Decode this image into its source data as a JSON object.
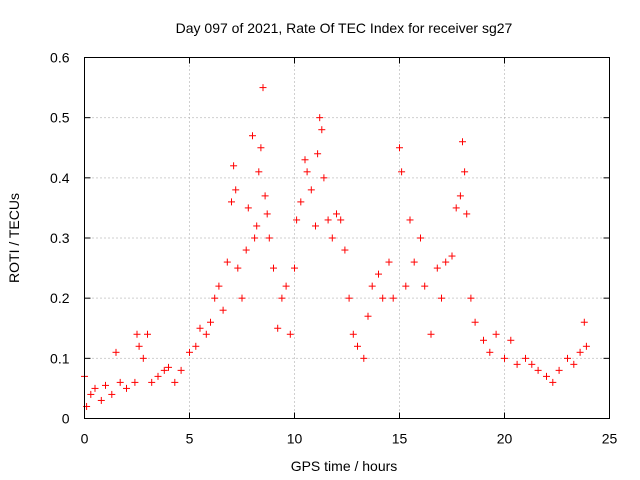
{
  "chart_data": {
    "type": "scatter",
    "title": "Day 097 of 2021, Rate Of TEC Index for receiver sg27",
    "xlabel": "GPS time / hours",
    "ylabel": "ROTI / TECUs",
    "xlim": [
      0,
      25
    ],
    "ylim": [
      0,
      0.6
    ],
    "xticks": [
      "0",
      "5",
      "10",
      "15",
      "20",
      "25"
    ],
    "yticks": [
      "0",
      "0.1",
      "0.2",
      "0.3",
      "0.4",
      "0.5",
      "0.6"
    ],
    "grid": true,
    "marker": "plus",
    "color": "#ff0000",
    "series": [
      {
        "name": "",
        "points": [
          [
            0.0,
            0.07
          ],
          [
            0.1,
            0.02
          ],
          [
            0.3,
            0.04
          ],
          [
            0.5,
            0.05
          ],
          [
            0.8,
            0.03
          ],
          [
            1.0,
            0.055
          ],
          [
            1.3,
            0.04
          ],
          [
            1.5,
            0.11
          ],
          [
            1.7,
            0.06
          ],
          [
            2.0,
            0.05
          ],
          [
            2.4,
            0.06
          ],
          [
            2.5,
            0.14
          ],
          [
            2.6,
            0.12
          ],
          [
            2.8,
            0.1
          ],
          [
            3.0,
            0.14
          ],
          [
            3.2,
            0.06
          ],
          [
            3.5,
            0.07
          ],
          [
            3.8,
            0.08
          ],
          [
            4.0,
            0.085
          ],
          [
            4.3,
            0.06
          ],
          [
            4.6,
            0.08
          ],
          [
            5.0,
            0.11
          ],
          [
            5.3,
            0.12
          ],
          [
            5.5,
            0.15
          ],
          [
            5.8,
            0.14
          ],
          [
            6.0,
            0.16
          ],
          [
            6.2,
            0.2
          ],
          [
            6.4,
            0.22
          ],
          [
            6.6,
            0.18
          ],
          [
            6.8,
            0.26
          ],
          [
            7.0,
            0.36
          ],
          [
            7.1,
            0.42
          ],
          [
            7.2,
            0.38
          ],
          [
            7.3,
            0.25
          ],
          [
            7.5,
            0.2
          ],
          [
            7.7,
            0.28
          ],
          [
            7.8,
            0.35
          ],
          [
            8.0,
            0.47
          ],
          [
            8.1,
            0.3
          ],
          [
            8.2,
            0.32
          ],
          [
            8.3,
            0.41
          ],
          [
            8.4,
            0.45
          ],
          [
            8.5,
            0.55
          ],
          [
            8.6,
            0.37
          ],
          [
            8.7,
            0.34
          ],
          [
            8.8,
            0.3
          ],
          [
            9.0,
            0.25
          ],
          [
            9.2,
            0.15
          ],
          [
            9.4,
            0.2
          ],
          [
            9.6,
            0.22
          ],
          [
            9.8,
            0.14
          ],
          [
            10.0,
            0.25
          ],
          [
            10.1,
            0.33
          ],
          [
            10.3,
            0.36
          ],
          [
            10.5,
            0.43
          ],
          [
            10.6,
            0.41
          ],
          [
            10.8,
            0.38
          ],
          [
            11.0,
            0.32
          ],
          [
            11.1,
            0.44
          ],
          [
            11.2,
            0.5
          ],
          [
            11.3,
            0.48
          ],
          [
            11.4,
            0.4
          ],
          [
            11.6,
            0.33
          ],
          [
            11.8,
            0.3
          ],
          [
            12.0,
            0.34
          ],
          [
            12.2,
            0.33
          ],
          [
            12.4,
            0.28
          ],
          [
            12.6,
            0.2
          ],
          [
            12.8,
            0.14
          ],
          [
            13.0,
            0.12
          ],
          [
            13.3,
            0.1
          ],
          [
            13.5,
            0.17
          ],
          [
            13.7,
            0.22
          ],
          [
            14.0,
            0.24
          ],
          [
            14.2,
            0.2
          ],
          [
            14.5,
            0.26
          ],
          [
            14.7,
            0.2
          ],
          [
            15.0,
            0.45
          ],
          [
            15.1,
            0.41
          ],
          [
            15.3,
            0.22
          ],
          [
            15.5,
            0.33
          ],
          [
            15.7,
            0.26
          ],
          [
            16.0,
            0.3
          ],
          [
            16.2,
            0.22
          ],
          [
            16.5,
            0.14
          ],
          [
            16.8,
            0.25
          ],
          [
            17.0,
            0.2
          ],
          [
            17.2,
            0.26
          ],
          [
            17.5,
            0.27
          ],
          [
            17.7,
            0.35
          ],
          [
            17.9,
            0.37
          ],
          [
            18.0,
            0.46
          ],
          [
            18.1,
            0.41
          ],
          [
            18.2,
            0.34
          ],
          [
            18.4,
            0.2
          ],
          [
            18.6,
            0.16
          ],
          [
            19.0,
            0.13
          ],
          [
            19.3,
            0.11
          ],
          [
            19.6,
            0.14
          ],
          [
            20.0,
            0.1
          ],
          [
            20.3,
            0.13
          ],
          [
            20.6,
            0.09
          ],
          [
            21.0,
            0.1
          ],
          [
            21.3,
            0.09
          ],
          [
            21.6,
            0.08
          ],
          [
            22.0,
            0.07
          ],
          [
            22.3,
            0.06
          ],
          [
            22.6,
            0.08
          ],
          [
            23.0,
            0.1
          ],
          [
            23.3,
            0.09
          ],
          [
            23.6,
            0.11
          ],
          [
            23.8,
            0.16
          ],
          [
            23.9,
            0.12
          ]
        ]
      }
    ]
  }
}
